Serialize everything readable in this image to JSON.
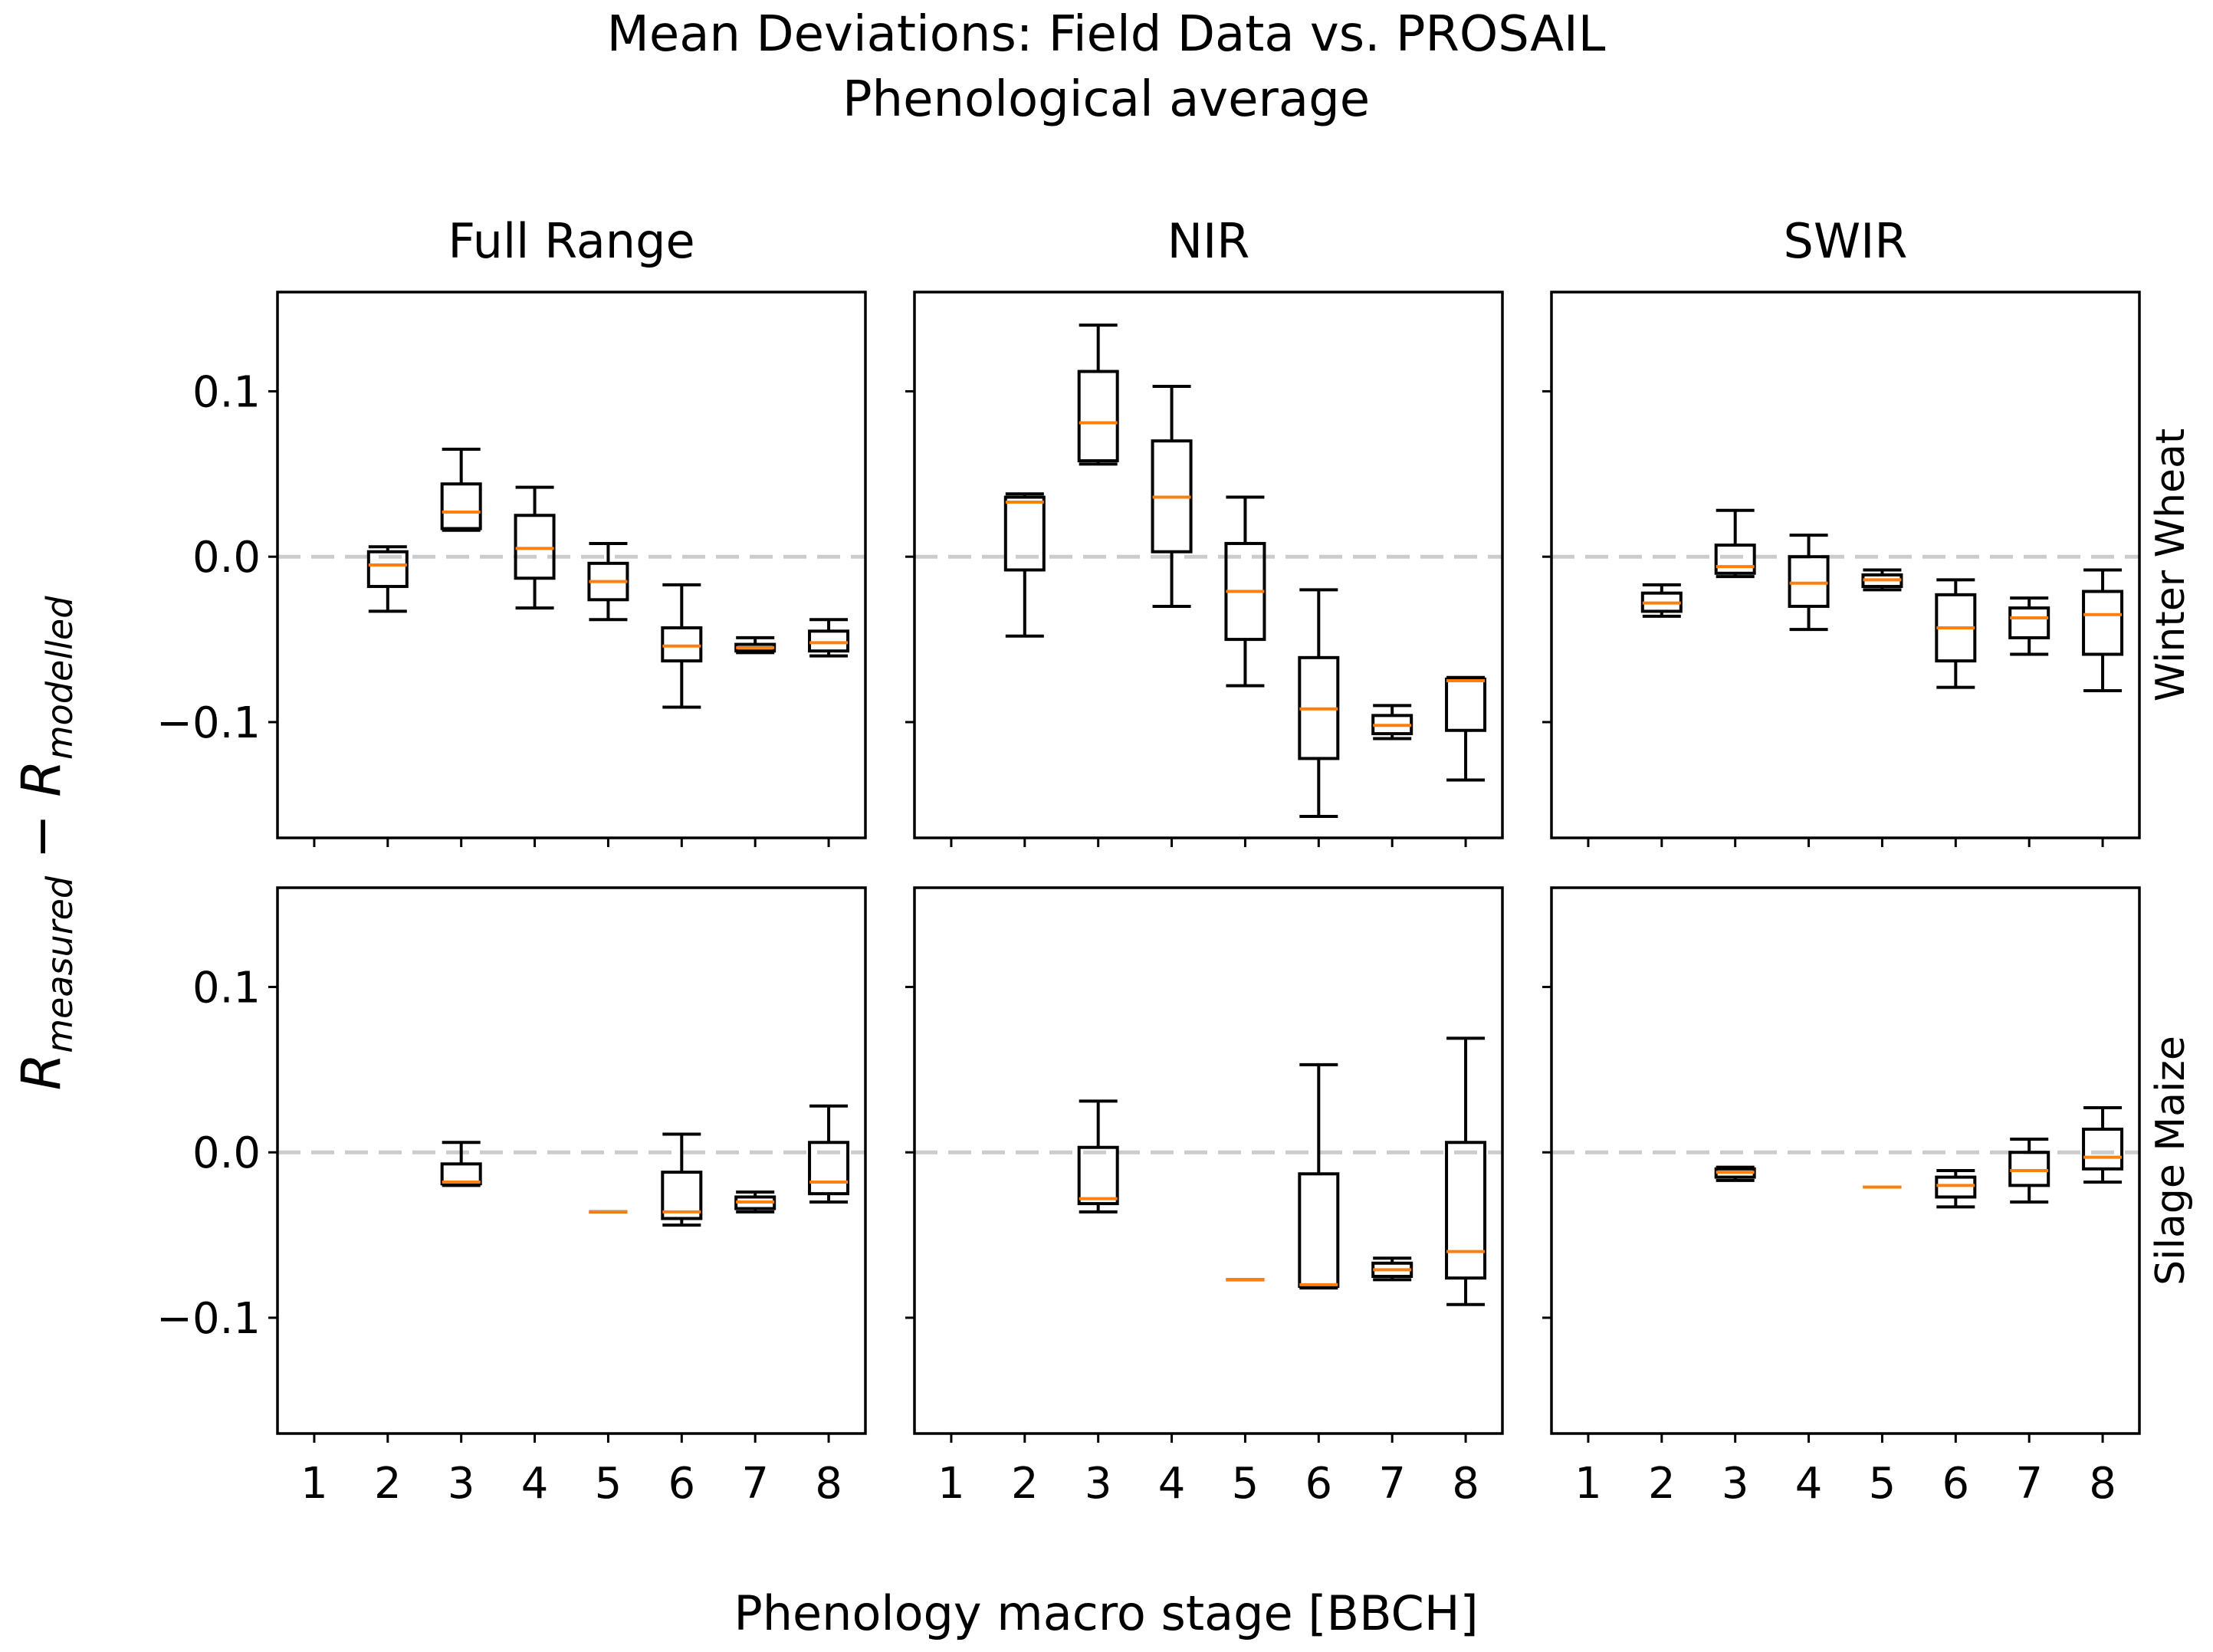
{
  "chart_data": {
    "type": "box",
    "title": "Mean Deviations: Field Data vs. PROSAIL",
    "subtitle": "Phenological average",
    "xlabel": "Phenology macro stage [BBCH]",
    "ylabel": {
      "main_left": "R",
      "sub_left": "measured",
      "operator": " − ",
      "main_right": "R",
      "sub_right": "modelled"
    },
    "ylim": [
      -0.17,
      0.16
    ],
    "yticks": [
      0.1,
      0.0,
      -0.1
    ],
    "ytick_labels": [
      "0.1",
      "0.0",
      "−0.1"
    ],
    "xticks": [
      1,
      2,
      3,
      4,
      5,
      6,
      7,
      8
    ],
    "xtick_labels": [
      "1",
      "2",
      "3",
      "4",
      "5",
      "6",
      "7",
      "8"
    ],
    "reference_line": 0.0,
    "columns": [
      "Full Range",
      "NIR",
      "SWIR"
    ],
    "rows": [
      "Winter Wheat",
      "Silage Maize"
    ],
    "colors": {
      "box": "#000000",
      "median": "#ff7f0e",
      "reference_line": "#cccccc",
      "axes": "#000000",
      "background": "#ffffff"
    },
    "panels": [
      {
        "row": "Winter Wheat",
        "column": "Full Range",
        "boxes": [
          {
            "stage": 2,
            "whislo": -0.033,
            "q1": -0.018,
            "med": -0.005,
            "q3": 0.003,
            "whishi": 0.006
          },
          {
            "stage": 3,
            "whislo": 0.016,
            "q1": 0.017,
            "med": 0.027,
            "q3": 0.044,
            "whishi": 0.065
          },
          {
            "stage": 4,
            "whislo": -0.031,
            "q1": -0.013,
            "med": 0.005,
            "q3": 0.025,
            "whishi": 0.042
          },
          {
            "stage": 5,
            "whislo": -0.038,
            "q1": -0.026,
            "med": -0.015,
            "q3": -0.004,
            "whishi": 0.008
          },
          {
            "stage": 6,
            "whislo": -0.091,
            "q1": -0.063,
            "med": -0.054,
            "q3": -0.043,
            "whishi": -0.017
          },
          {
            "stage": 7,
            "whislo": -0.058,
            "q1": -0.057,
            "med": -0.055,
            "q3": -0.053,
            "whishi": -0.049
          },
          {
            "stage": 8,
            "whislo": -0.06,
            "q1": -0.057,
            "med": -0.052,
            "q3": -0.045,
            "whishi": -0.038
          }
        ]
      },
      {
        "row": "Winter Wheat",
        "column": "NIR",
        "boxes": [
          {
            "stage": 2,
            "whislo": -0.048,
            "q1": -0.008,
            "med": 0.033,
            "q3": 0.036,
            "whishi": 0.038
          },
          {
            "stage": 3,
            "whislo": 0.056,
            "q1": 0.058,
            "med": 0.081,
            "q3": 0.112,
            "whishi": 0.14
          },
          {
            "stage": 4,
            "whislo": -0.03,
            "q1": 0.003,
            "med": 0.036,
            "q3": 0.07,
            "whishi": 0.103
          },
          {
            "stage": 5,
            "whislo": -0.078,
            "q1": -0.05,
            "med": -0.021,
            "q3": 0.008,
            "whishi": 0.036
          },
          {
            "stage": 6,
            "whislo": -0.157,
            "q1": -0.122,
            "med": -0.092,
            "q3": -0.061,
            "whishi": -0.02
          },
          {
            "stage": 7,
            "whislo": -0.11,
            "q1": -0.107,
            "med": -0.102,
            "q3": -0.096,
            "whishi": -0.09
          },
          {
            "stage": 8,
            "whislo": -0.135,
            "q1": -0.105,
            "med": -0.075,
            "q3": -0.074,
            "whishi": -0.073
          }
        ]
      },
      {
        "row": "Winter Wheat",
        "column": "SWIR",
        "boxes": [
          {
            "stage": 2,
            "whislo": -0.036,
            "q1": -0.033,
            "med": -0.028,
            "q3": -0.022,
            "whishi": -0.017
          },
          {
            "stage": 3,
            "whislo": -0.012,
            "q1": -0.01,
            "med": -0.006,
            "q3": 0.007,
            "whishi": 0.028
          },
          {
            "stage": 4,
            "whislo": -0.044,
            "q1": -0.03,
            "med": -0.016,
            "q3": 0.0,
            "whishi": 0.013
          },
          {
            "stage": 5,
            "whislo": -0.02,
            "q1": -0.018,
            "med": -0.014,
            "q3": -0.011,
            "whishi": -0.008
          },
          {
            "stage": 6,
            "whislo": -0.079,
            "q1": -0.063,
            "med": -0.043,
            "q3": -0.023,
            "whishi": -0.014
          },
          {
            "stage": 7,
            "whislo": -0.059,
            "q1": -0.049,
            "med": -0.037,
            "q3": -0.031,
            "whishi": -0.025
          },
          {
            "stage": 8,
            "whislo": -0.081,
            "q1": -0.059,
            "med": -0.035,
            "q3": -0.021,
            "whishi": -0.008
          }
        ]
      },
      {
        "row": "Silage Maize",
        "column": "Full Range",
        "boxes": [
          {
            "stage": 3,
            "whislo": -0.02,
            "q1": -0.019,
            "med": -0.018,
            "q3": -0.007,
            "whishi": 0.006
          },
          {
            "stage": 5,
            "whislo": -0.036,
            "q1": -0.036,
            "med": -0.036,
            "q3": -0.036,
            "whishi": -0.036
          },
          {
            "stage": 6,
            "whislo": -0.044,
            "q1": -0.04,
            "med": -0.036,
            "q3": -0.012,
            "whishi": 0.011
          },
          {
            "stage": 7,
            "whislo": -0.036,
            "q1": -0.034,
            "med": -0.03,
            "q3": -0.027,
            "whishi": -0.024
          },
          {
            "stage": 8,
            "whislo": -0.03,
            "q1": -0.025,
            "med": -0.018,
            "q3": 0.006,
            "whishi": 0.028
          }
        ]
      },
      {
        "row": "Silage Maize",
        "column": "NIR",
        "boxes": [
          {
            "stage": 3,
            "whislo": -0.036,
            "q1": -0.031,
            "med": -0.028,
            "q3": 0.003,
            "whishi": 0.031
          },
          {
            "stage": 5,
            "whislo": -0.077,
            "q1": -0.077,
            "med": -0.077,
            "q3": -0.077,
            "whishi": -0.077
          },
          {
            "stage": 6,
            "whislo": -0.082,
            "q1": -0.081,
            "med": -0.08,
            "q3": -0.013,
            "whishi": 0.053
          },
          {
            "stage": 7,
            "whislo": -0.077,
            "q1": -0.075,
            "med": -0.071,
            "q3": -0.067,
            "whishi": -0.064
          },
          {
            "stage": 8,
            "whislo": -0.092,
            "q1": -0.076,
            "med": -0.06,
            "q3": 0.006,
            "whishi": 0.069
          }
        ]
      },
      {
        "row": "Silage Maize",
        "column": "SWIR",
        "boxes": [
          {
            "stage": 3,
            "whislo": -0.017,
            "q1": -0.015,
            "med": -0.012,
            "q3": -0.01,
            "whishi": -0.009
          },
          {
            "stage": 5,
            "whislo": -0.021,
            "q1": -0.021,
            "med": -0.021,
            "q3": -0.021,
            "whishi": -0.021
          },
          {
            "stage": 6,
            "whislo": -0.033,
            "q1": -0.027,
            "med": -0.02,
            "q3": -0.015,
            "whishi": -0.011
          },
          {
            "stage": 7,
            "whislo": -0.03,
            "q1": -0.02,
            "med": -0.011,
            "q3": 0.0,
            "whishi": 0.008
          },
          {
            "stage": 8,
            "whislo": -0.018,
            "q1": -0.01,
            "med": -0.003,
            "q3": 0.014,
            "whishi": 0.027
          }
        ]
      }
    ]
  }
}
